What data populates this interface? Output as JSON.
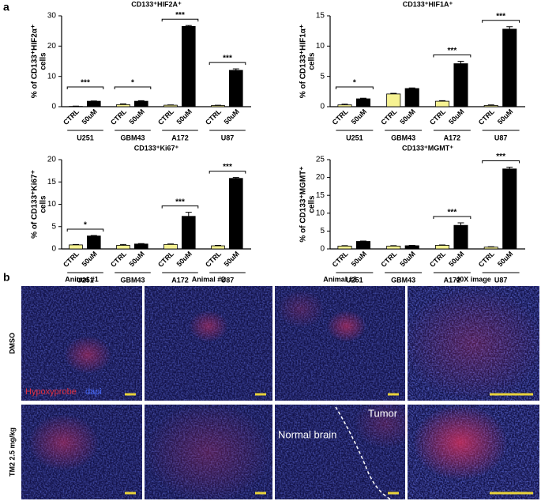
{
  "panels": [
    "a",
    "b"
  ],
  "chart_data": [
    {
      "type": "bar",
      "title": "CD133⁺HIF2A⁺",
      "ylabel": [
        "% of CD133⁺HIF2α⁺",
        "cells"
      ],
      "categories": [
        "CTRL",
        "50uM",
        "CTRL",
        "50uM",
        "CTRL",
        "50uM",
        "CTRL",
        "50uM"
      ],
      "groups": [
        "U251",
        "GBM43",
        "A172",
        "U87"
      ],
      "values": [
        0.1,
        1.8,
        0.7,
        1.8,
        0.5,
        26.5,
        0.4,
        12.0
      ],
      "errors": [
        0.1,
        0.1,
        0.2,
        0.2,
        0.1,
        0.3,
        0.1,
        0.5
      ],
      "significance": [
        "***",
        "*",
        "***",
        "***"
      ],
      "colors": [
        "#f6f292",
        "#000000"
      ],
      "ylim": [
        0,
        30
      ],
      "yticks": [
        0,
        10,
        20,
        30
      ]
    },
    {
      "type": "bar",
      "title": "CD133⁺HIF1A⁺",
      "ylabel": [
        "% of CD133⁺HIF1α⁺",
        "cells"
      ],
      "categories": [
        "CTRL",
        "50uM",
        "CTRL",
        "50uM",
        "CTRL",
        "50uM",
        "CTRL",
        "50uM"
      ],
      "groups": [
        "U251",
        "GBM43",
        "A172",
        "U87"
      ],
      "values": [
        0.3,
        1.3,
        2.1,
        3.0,
        0.9,
        7.1,
        0.2,
        12.8
      ],
      "errors": [
        0.1,
        0.1,
        0.1,
        0.1,
        0.1,
        0.4,
        0.1,
        0.4
      ],
      "significance": [
        "*",
        null,
        "***",
        "***"
      ],
      "colors": [
        "#f6f292",
        "#000000"
      ],
      "ylim": [
        0,
        15
      ],
      "yticks": [
        0,
        5,
        10,
        15
      ]
    },
    {
      "type": "bar",
      "title": "CD133⁺Ki67⁺",
      "ylabel": [
        "% of CD133⁺Ki67⁺",
        "cells"
      ],
      "categories": [
        "CTRL",
        "50uM",
        "CTRL",
        "50uM",
        "CTRL",
        "50uM",
        "CTRL",
        "50uM"
      ],
      "groups": [
        "U251",
        "GBM43",
        "A172",
        "U87"
      ],
      "values": [
        0.9,
        2.9,
        0.8,
        1.1,
        1.0,
        7.3,
        0.7,
        15.8
      ],
      "errors": [
        0.1,
        0.1,
        0.2,
        0.1,
        0.1,
        0.9,
        0.1,
        0.2
      ],
      "significance": [
        "*",
        null,
        "***",
        "***"
      ],
      "colors": [
        "#f6f292",
        "#000000"
      ],
      "ylim": [
        0,
        20
      ],
      "yticks": [
        0,
        5,
        10,
        15,
        20
      ]
    },
    {
      "type": "bar",
      "title": "CD133⁺MGMT⁺",
      "ylabel": [
        "% of CD133⁺MGMT⁺",
        "cells"
      ],
      "categories": [
        "CTRL",
        "50uM",
        "CTRL",
        "50uM",
        "CTRL",
        "50uM",
        "CTRL",
        "50uM"
      ],
      "groups": [
        "U251",
        "GBM43",
        "A172",
        "U87"
      ],
      "values": [
        0.8,
        2.1,
        0.8,
        0.9,
        1.0,
        6.6,
        0.5,
        22.4
      ],
      "errors": [
        0.1,
        0.1,
        0.1,
        0.1,
        0.1,
        0.7,
        0.1,
        0.5
      ],
      "significance": [
        null,
        null,
        "***",
        "***"
      ],
      "colors": [
        "#f6f292",
        "#000000"
      ],
      "ylim": [
        0,
        25
      ],
      "yticks": [
        0,
        5,
        10,
        15,
        20,
        25
      ]
    }
  ],
  "images": {
    "columns": [
      "Animal #1",
      "Animal #2",
      "Animal #3",
      "40X image"
    ],
    "rows": [
      "DMSO",
      "TM2 2.5 mg/kg"
    ],
    "legend": [
      "Hypoxyprobe",
      "dapi"
    ],
    "annotations": [
      "Normal brain",
      "Tumor"
    ]
  }
}
